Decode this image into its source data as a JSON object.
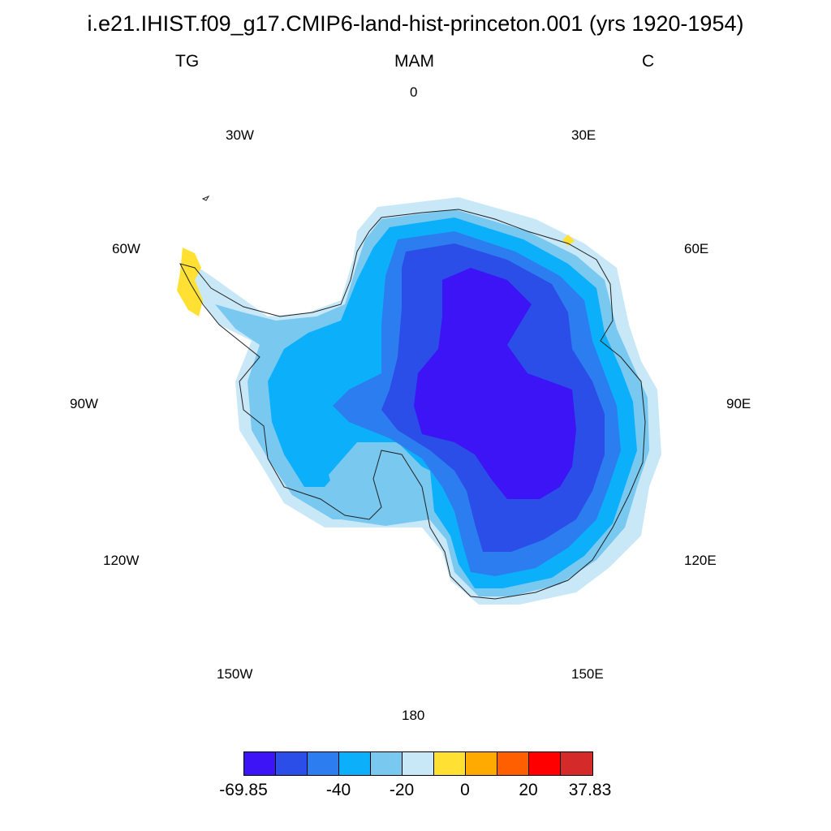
{
  "title": "i.e21.IHIST.f09_g17.CMIP6-land-hist-princeton.001 (yrs 1920-1954)",
  "variable": "TG",
  "season": "MAM",
  "units": "C",
  "longitude_labels": [
    "0",
    "30E",
    "60E",
    "90E",
    "120E",
    "150E",
    "180",
    "150W",
    "120W",
    "90W",
    "60W",
    "30W"
  ],
  "colorbar": {
    "colors": [
      "#3c14f5",
      "#2b4de8",
      "#2c7df0",
      "#0cb0fa",
      "#78c8f0",
      "#c8e8f8",
      "#ffe033",
      "#ffaa00",
      "#ff5f00",
      "#ff0000",
      "#d42a2a"
    ],
    "tick_labels": [
      "-69.85",
      "-40",
      "-20",
      "0",
      "20",
      "37.83"
    ]
  },
  "map": {
    "projection": "south-polar-stereographic",
    "region": "Antarctica",
    "levels": [
      {
        "color": "#c8e8f8",
        "label": "-20 to -10"
      },
      {
        "color": "#78c8f0",
        "label": "-30 to -20"
      },
      {
        "color": "#0cb0fa",
        "label": "-40 to -30"
      },
      {
        "color": "#2c7df0",
        "label": "-50 to -40"
      },
      {
        "color": "#2b4de8",
        "label": "-60 to -50"
      },
      {
        "color": "#3c14f5",
        "label": "-69.85 to -60"
      }
    ],
    "warm_patch_color": "#ffe033"
  }
}
